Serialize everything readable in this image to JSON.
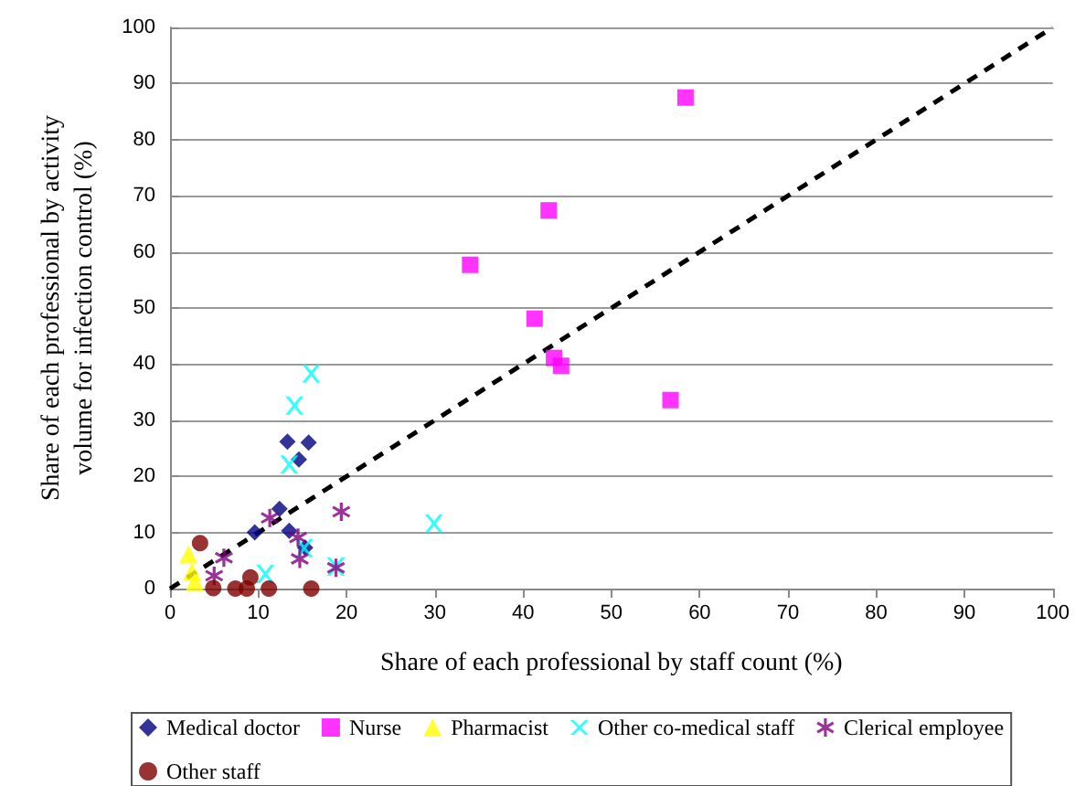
{
  "chart_data": {
    "type": "scatter",
    "xlabel": "Share of each professional by staff count (%)",
    "ylabel": "Share of each professional by activity\nvolume for infection control (%)",
    "xlim": [
      0,
      100
    ],
    "xticks": [
      0,
      10,
      20,
      30,
      40,
      50,
      60,
      70,
      80,
      90,
      100
    ],
    "ylim": [
      0,
      100
    ],
    "yticks": [
      0,
      10,
      20,
      30,
      40,
      50,
      60,
      70,
      80,
      90,
      100
    ],
    "grid": "y",
    "legend": "bottom",
    "series": [
      {
        "name": "Medical doctor",
        "color": "#000080",
        "marker": "diamond",
        "x": [
          13.3,
          15.7,
          14.6,
          12.4,
          9.6,
          13.5,
          15.3
        ],
        "values": [
          26.2,
          26,
          23,
          14.2,
          10,
          10.3,
          7.3
        ]
      },
      {
        "name": "Nurse",
        "color": "#ff00ff",
        "marker": "square",
        "x": [
          58.4,
          42.9,
          34,
          41.3,
          43.5,
          44.3,
          56.7
        ],
        "values": [
          87.5,
          67.4,
          57.7,
          48.1,
          41.1,
          39.7,
          33.6
        ]
      },
      {
        "name": "Pharmacist",
        "color": "#ffff00",
        "marker": "triangle",
        "x": [
          2.1,
          2.5,
          2.8
        ],
        "values": [
          6.1,
          3,
          1.2
        ]
      },
      {
        "name": "Other co-medical staff",
        "color": "#00ffff",
        "marker": "cross",
        "x": [
          16,
          14.1,
          13.5,
          15.2,
          10.8,
          18.8,
          29.9
        ],
        "values": [
          38.3,
          32.6,
          22.1,
          7.2,
          2.6,
          3.9,
          11.6
        ]
      },
      {
        "name": "Clerical employee",
        "color": "#800080",
        "marker": "star",
        "x": [
          11.3,
          19.4,
          6.1,
          5,
          14.5,
          14.7,
          18.8
        ],
        "values": [
          12.6,
          13.7,
          5.5,
          2.3,
          9.1,
          5.3,
          3.7
        ]
      },
      {
        "name": "Other staff",
        "color": "#800000",
        "marker": "circle",
        "x": [
          3.4,
          4.9,
          7.4,
          8.7,
          9.1,
          11.2,
          16
        ],
        "values": [
          8.1,
          0.1,
          0,
          0,
          2,
          0,
          0
        ]
      },
      {
        "type": "line",
        "color": "#000000",
        "marker": "none",
        "line_style": "dashed",
        "x": [
          0,
          100
        ],
        "values": [
          0,
          100
        ]
      }
    ]
  }
}
